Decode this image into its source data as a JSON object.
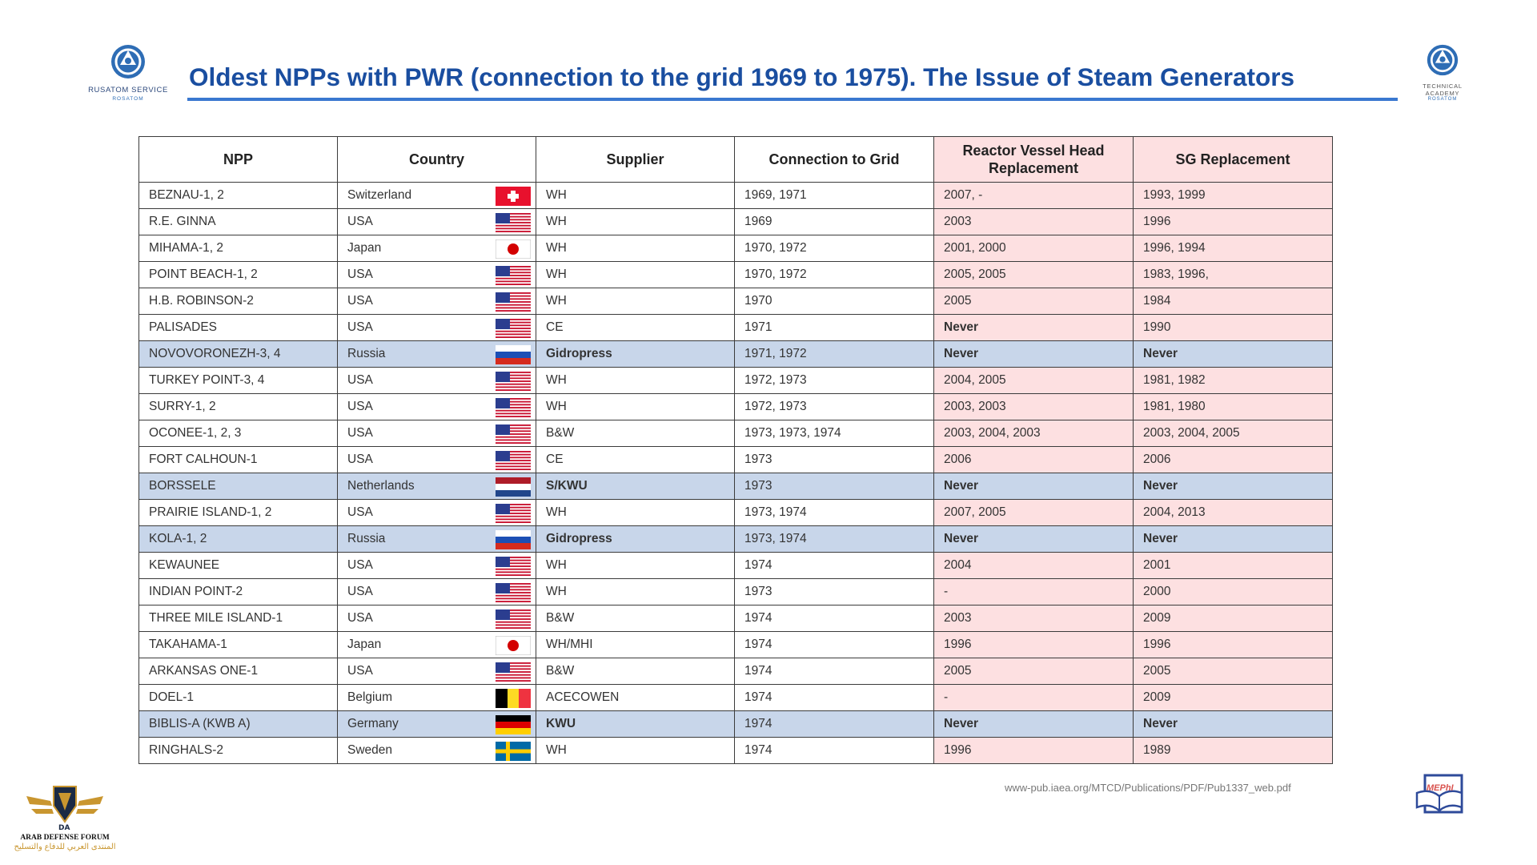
{
  "header": {
    "title": "Oldest NPPs with PWR (connection to the grid 1969 to 1975). The Issue of Steam Generators",
    "left_logo": {
      "line1": "RUSATOM SERVICE",
      "line2": "ROSATOM"
    },
    "right_logo": {
      "line1": "TECHNICAL ACADEMY",
      "line2": "ROSATOM"
    },
    "accent_color": "#1a4ea0"
  },
  "table": {
    "headers": [
      "NPP",
      "Country",
      "Supplier",
      "Connection to Grid",
      "Reactor Vessel Head Replacement",
      "SG Replacement"
    ],
    "rows": [
      {
        "npp": "BEZNAU-1, 2",
        "country": "Switzerland",
        "flag": "switzerland",
        "supplier": "WH",
        "grid": "1969, 1971",
        "rvh": "2007, -",
        "sg": "1993, 1999",
        "highlight": false
      },
      {
        "npp": "R.E. GINNA",
        "country": "USA",
        "flag": "usa",
        "supplier": "WH",
        "grid": "1969",
        "rvh": "2003",
        "sg": "1996",
        "highlight": false
      },
      {
        "npp": "MIHAMA-1, 2",
        "country": "Japan",
        "flag": "japan",
        "supplier": "WH",
        "grid": "1970, 1972",
        "rvh": "2001, 2000",
        "sg": "1996, 1994",
        "highlight": false
      },
      {
        "npp": "POINT BEACH-1, 2",
        "country": "USA",
        "flag": "usa",
        "supplier": "WH",
        "grid": "1970, 1972",
        "rvh": "2005, 2005",
        "sg": "1983, 1996,",
        "highlight": false
      },
      {
        "npp": "H.B. ROBINSON-2",
        "country": "USA",
        "flag": "usa",
        "supplier": "WH",
        "grid": "1970",
        "rvh": "2005",
        "sg": "1984",
        "highlight": false
      },
      {
        "npp": "PALISADES",
        "country": "USA",
        "flag": "usa",
        "supplier": "CE",
        "grid": "1971",
        "rvh": "Never",
        "sg": "1990",
        "highlight": false
      },
      {
        "npp": "NOVOVORONEZH-3, 4",
        "country": "Russia",
        "flag": "russia",
        "supplier": "Gidropress",
        "grid": "1971, 1972",
        "rvh": "Never",
        "sg": "Never",
        "highlight": true
      },
      {
        "npp": "TURKEY POINT-3, 4",
        "country": "USA",
        "flag": "usa",
        "supplier": "WH",
        "grid": "1972, 1973",
        "rvh": "2004, 2005",
        "sg": "1981, 1982",
        "highlight": false
      },
      {
        "npp": "SURRY-1, 2",
        "country": "USA",
        "flag": "usa",
        "supplier": "WH",
        "grid": "1972, 1973",
        "rvh": "2003, 2003",
        "sg": "1981, 1980",
        "highlight": false
      },
      {
        "npp": "OCONEE-1, 2, 3",
        "country": "USA",
        "flag": "usa",
        "supplier": "B&W",
        "grid": "1973, 1973, 1974",
        "rvh": "2003, 2004, 2003",
        "sg": "2003, 2004, 2005",
        "highlight": false
      },
      {
        "npp": "FORT CALHOUN-1",
        "country": "USA",
        "flag": "usa",
        "supplier": "CE",
        "grid": "1973",
        "rvh": "2006",
        "sg": "2006",
        "highlight": false
      },
      {
        "npp": "BORSSELE",
        "country": "Netherlands",
        "flag": "netherlands",
        "supplier": "S/KWU",
        "grid": "1973",
        "rvh": "Never",
        "sg": "Never",
        "highlight": true
      },
      {
        "npp": "PRAIRIE ISLAND-1, 2",
        "country": "USA",
        "flag": "usa",
        "supplier": "WH",
        "grid": "1973, 1974",
        "rvh": "2007, 2005",
        "sg": "2004, 2013",
        "highlight": false
      },
      {
        "npp": "KOLA-1, 2",
        "country": "Russia",
        "flag": "russia",
        "supplier": "Gidropress",
        "grid": "1973, 1974",
        "rvh": "Never",
        "sg": "Never",
        "highlight": true
      },
      {
        "npp": "KEWAUNEE",
        "country": "USA",
        "flag": "usa",
        "supplier": "WH",
        "grid": "1974",
        "rvh": "2004",
        "sg": "2001",
        "highlight": false
      },
      {
        "npp": "INDIAN POINT-2",
        "country": "USA",
        "flag": "usa",
        "supplier": "WH",
        "grid": "1973",
        "rvh": "-",
        "sg": "2000",
        "highlight": false
      },
      {
        "npp": "THREE MILE ISLAND-1",
        "country": "USA",
        "flag": "usa",
        "supplier": "B&W",
        "grid": "1974",
        "rvh": "2003",
        "sg": "2009",
        "highlight": false
      },
      {
        "npp": "TAKAHAMA-1",
        "country": "Japan",
        "flag": "japan",
        "supplier": "WH/MHI",
        "grid": "1974",
        "rvh": "1996",
        "sg": "1996",
        "highlight": false
      },
      {
        "npp": "ARKANSAS ONE-1",
        "country": "USA",
        "flag": "usa",
        "supplier": "B&W",
        "grid": "1974",
        "rvh": "2005",
        "sg": "2005",
        "highlight": false
      },
      {
        "npp": "DOEL-1",
        "country": "Belgium",
        "flag": "belgium",
        "supplier": "ACECOWEN",
        "grid": "1974",
        "rvh": "-",
        "sg": "2009",
        "highlight": false
      },
      {
        "npp": "BIBLIS-A (KWB A)",
        "country": "Germany",
        "flag": "germany",
        "supplier": "KWU",
        "grid": "1974",
        "rvh": "Never",
        "sg": "Never",
        "highlight": true
      },
      {
        "npp": "RINGHALS-2",
        "country": "Sweden",
        "flag": "sweden",
        "supplier": "WH",
        "grid": "1974",
        "rvh": "1996",
        "sg": "1989",
        "highlight": false
      }
    ]
  },
  "source": "www-pub.iaea.org/MTCD/Publications/PDF/Pub1337_web.pdf",
  "footer": {
    "forum_logo": {
      "en": "ARAB DEFENSE FORUM",
      "ar": "المنتدى العربي للدفاع والتسليح"
    },
    "mephi_logo": "MEPhI"
  }
}
